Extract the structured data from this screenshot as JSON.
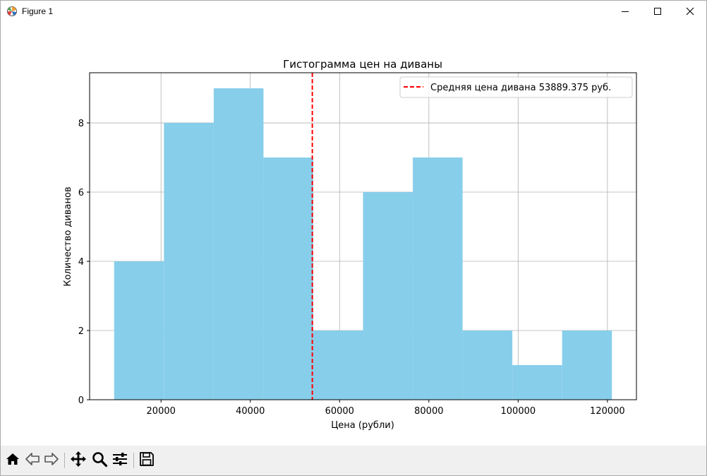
{
  "window": {
    "title": "Figure 1",
    "icon": "matplotlib-icon",
    "controls": [
      "minimize-icon",
      "maximize-icon",
      "close-icon"
    ]
  },
  "toolbar": {
    "buttons": [
      "home-icon",
      "back-icon",
      "forward-icon",
      "pan-icon",
      "zoom-icon",
      "configure-subplots-icon",
      "save-icon"
    ]
  },
  "chart_data": {
    "type": "bar",
    "title": "Гистограмма цен на диваны",
    "xlabel": "Цена (рубли)",
    "ylabel": "Количество диванов",
    "bin_edges": [
      9500,
      20650,
      31800,
      42950,
      54100,
      65250,
      76400,
      87550,
      98700,
      109850,
      121000
    ],
    "values": [
      4,
      8,
      9,
      7,
      2,
      6,
      7,
      2,
      1,
      2
    ],
    "xlim": [
      4000,
      126500
    ],
    "ylim": [
      0,
      9.45
    ],
    "xticks": [
      20000,
      40000,
      60000,
      80000,
      100000,
      120000
    ],
    "xtick_labels": [
      "20000",
      "40000",
      "60000",
      "80000",
      "100000",
      "120000"
    ],
    "yticks": [
      0,
      2,
      4,
      6,
      8
    ],
    "ytick_labels": [
      "0",
      "2",
      "4",
      "6",
      "8"
    ],
    "grid": true,
    "bar_color": "#87ceeb",
    "mean_line": {
      "x": 53889.375,
      "color": "#ff0000",
      "style": "dashed",
      "label": "Средняя цена дивана 53889.375 руб."
    },
    "legend_position": "top-right"
  }
}
